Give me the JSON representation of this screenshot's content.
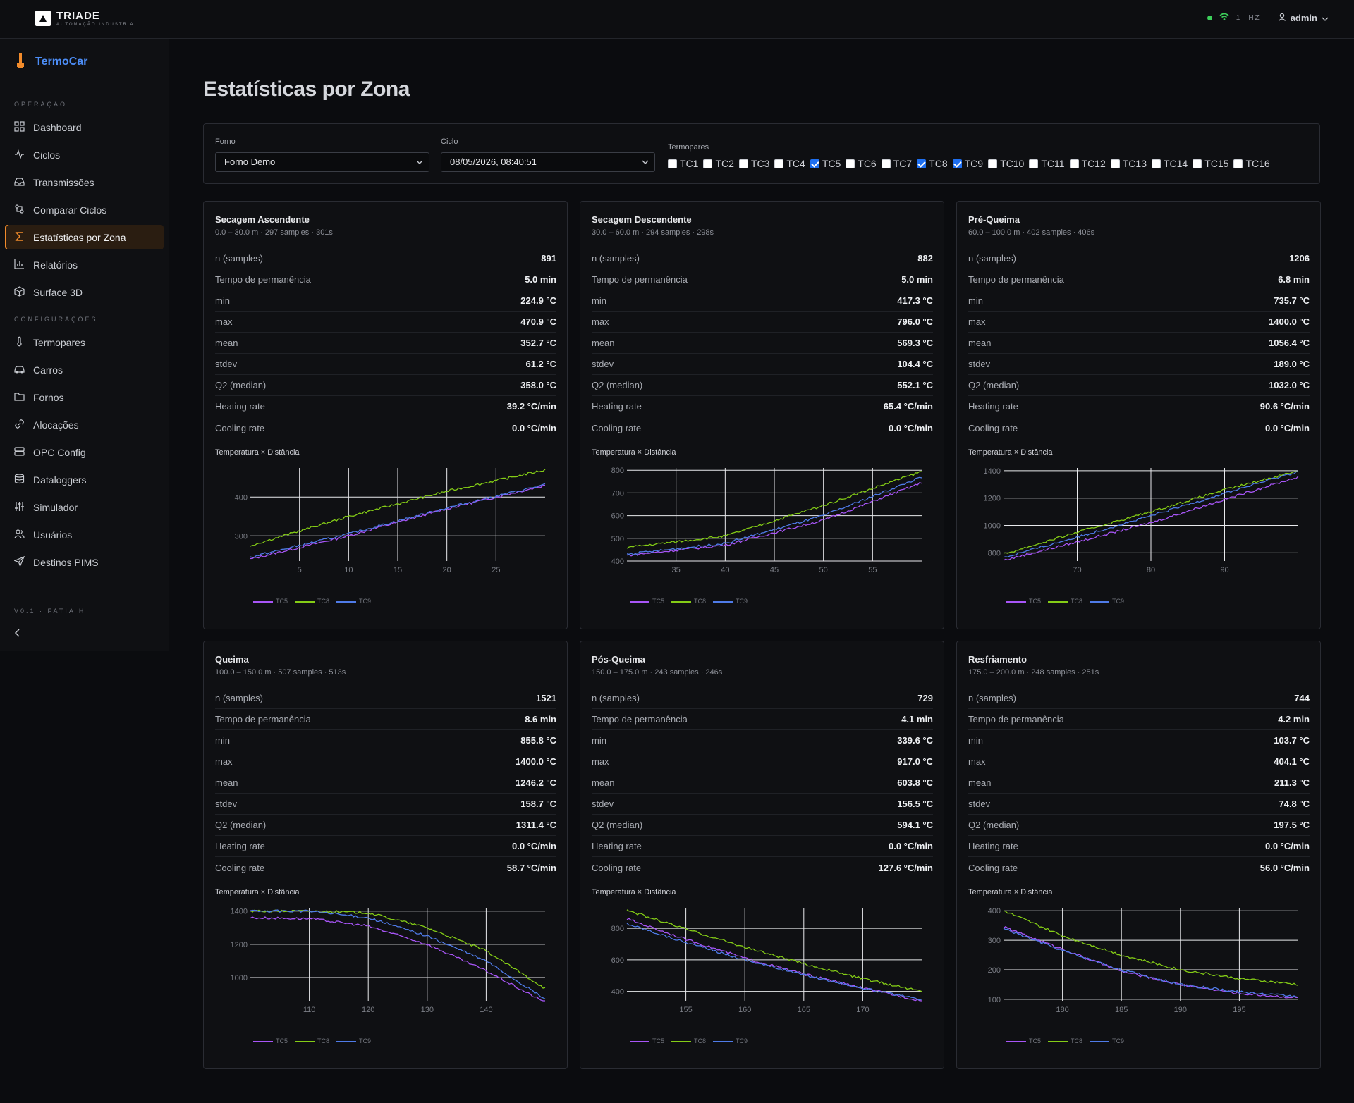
{
  "header": {
    "brand": "TRIADE",
    "brand_sub": "AUTOMAÇÃO INDUSTRIAL",
    "status_count": "1",
    "status_unit": "HZ",
    "user": "admin"
  },
  "sidebar": {
    "app_name": "TermoCar",
    "section_operacao": "OPERAÇÃO",
    "section_config": "CONFIGURAÇÕES",
    "version": "V0.1 · FATIA H",
    "items_op": [
      {
        "label": "Dashboard",
        "icon": "grid-icon"
      },
      {
        "label": "Ciclos",
        "icon": "activity-icon"
      },
      {
        "label": "Transmissões",
        "icon": "inbox-icon"
      },
      {
        "label": "Comparar Ciclos",
        "icon": "compare-icon"
      },
      {
        "label": "Estatísticas por Zona",
        "icon": "sigma-icon",
        "active": true
      },
      {
        "label": "Relatórios",
        "icon": "bar-chart-icon"
      },
      {
        "label": "Surface 3D",
        "icon": "cube-icon"
      }
    ],
    "items_cfg": [
      {
        "label": "Termopares",
        "icon": "thermometer-icon"
      },
      {
        "label": "Carros",
        "icon": "car-icon"
      },
      {
        "label": "Fornos",
        "icon": "folder-icon"
      },
      {
        "label": "Alocações",
        "icon": "link-icon"
      },
      {
        "label": "OPC Config",
        "icon": "server-icon"
      },
      {
        "label": "Dataloggers",
        "icon": "database-icon"
      },
      {
        "label": "Simulador",
        "icon": "sliders-icon"
      },
      {
        "label": "Usuários",
        "icon": "users-icon"
      },
      {
        "label": "Destinos PIMS",
        "icon": "send-icon"
      }
    ]
  },
  "page": {
    "title": "Estatísticas por Zona"
  },
  "filters": {
    "forno_label": "Forno",
    "forno_value": "Forno Demo",
    "ciclo_label": "Ciclo",
    "ciclo_value": "08/05/2026, 08:40:51",
    "termopares_label": "Termopares",
    "termopares": [
      {
        "name": "TC1",
        "checked": false
      },
      {
        "name": "TC2",
        "checked": false
      },
      {
        "name": "TC3",
        "checked": false
      },
      {
        "name": "TC4",
        "checked": false
      },
      {
        "name": "TC5",
        "checked": true
      },
      {
        "name": "TC6",
        "checked": false
      },
      {
        "name": "TC7",
        "checked": false
      },
      {
        "name": "TC8",
        "checked": true
      },
      {
        "name": "TC9",
        "checked": true
      },
      {
        "name": "TC10",
        "checked": false
      },
      {
        "name": "TC11",
        "checked": false
      },
      {
        "name": "TC12",
        "checked": false
      },
      {
        "name": "TC13",
        "checked": false
      },
      {
        "name": "TC14",
        "checked": false
      },
      {
        "name": "TC15",
        "checked": false
      },
      {
        "name": "TC16",
        "checked": false
      }
    ]
  },
  "stat_labels": [
    "n (samples)",
    "Tempo de permanência",
    "min",
    "max",
    "mean",
    "stdev",
    "Q2 (median)",
    "Heating rate",
    "Cooling rate"
  ],
  "chart_title": "Temperatura × Distância",
  "series_colors": {
    "TC5": "#a855f7",
    "TC8": "#84cc16",
    "TC9": "#4f7be8"
  },
  "zones": [
    {
      "name": "Secagem Ascendente",
      "sub": "0.0 – 30.0 m · 297 samples · 301s",
      "values": [
        "891",
        "5.0 min",
        "224.9 °C",
        "470.9 °C",
        "352.7 °C",
        "61.2 °C",
        "358.0 °C",
        "39.2 °C/min",
        "0.0 °C/min"
      ]
    },
    {
      "name": "Secagem Descendente",
      "sub": "30.0 – 60.0 m · 294 samples · 298s",
      "values": [
        "882",
        "5.0 min",
        "417.3 °C",
        "796.0 °C",
        "569.3 °C",
        "104.4 °C",
        "552.1 °C",
        "65.4 °C/min",
        "0.0 °C/min"
      ]
    },
    {
      "name": "Pré-Queima",
      "sub": "60.0 – 100.0 m · 402 samples · 406s",
      "values": [
        "1206",
        "6.8 min",
        "735.7 °C",
        "1400.0 °C",
        "1056.4 °C",
        "189.0 °C",
        "1032.0 °C",
        "90.6 °C/min",
        "0.0 °C/min"
      ]
    },
    {
      "name": "Queima",
      "sub": "100.0 – 150.0 m · 507 samples · 513s",
      "values": [
        "1521",
        "8.6 min",
        "855.8 °C",
        "1400.0 °C",
        "1246.2 °C",
        "158.7 °C",
        "1311.4 °C",
        "0.0 °C/min",
        "58.7 °C/min"
      ]
    },
    {
      "name": "Pós-Queima",
      "sub": "150.0 – 175.0 m · 243 samples · 246s",
      "values": [
        "729",
        "4.1 min",
        "339.6 °C",
        "917.0 °C",
        "603.8 °C",
        "156.5 °C",
        "594.1 °C",
        "0.0 °C/min",
        "127.6 °C/min"
      ]
    },
    {
      "name": "Resfriamento",
      "sub": "175.0 – 200.0 m · 248 samples · 251s",
      "values": [
        "744",
        "4.2 min",
        "103.7 °C",
        "404.1 °C",
        "211.3 °C",
        "74.8 °C",
        "197.5 °C",
        "0.0 °C/min",
        "56.0 °C/min"
      ]
    }
  ],
  "chart_data": [
    {
      "type": "line",
      "title": "Temperatura × Distância",
      "xlim": [
        0,
        30
      ],
      "ylim": [
        235,
        475
      ],
      "xticks": [
        5,
        10,
        15,
        20,
        25
      ],
      "yticks": [
        300,
        400
      ],
      "series": [
        {
          "name": "TC5",
          "x": [
            0,
            10,
            20,
            30
          ],
          "y": [
            240,
            300,
            370,
            430
          ]
        },
        {
          "name": "TC8",
          "x": [
            0,
            10,
            20,
            30
          ],
          "y": [
            275,
            350,
            415,
            470
          ]
        },
        {
          "name": "TC9",
          "x": [
            0,
            10,
            20,
            30
          ],
          "y": [
            245,
            305,
            372,
            432
          ]
        }
      ]
    },
    {
      "name_ref": "Secagem Descendente",
      "type": "line",
      "title": "Temperatura × Distância",
      "xlim": [
        30,
        60
      ],
      "ylim": [
        400,
        810
      ],
      "xticks": [
        35,
        40,
        45,
        50,
        55
      ],
      "yticks": [
        400,
        500,
        600,
        700,
        800
      ],
      "series": [
        {
          "name": "TC5",
          "x": [
            30,
            40,
            50,
            60
          ],
          "y": [
            425,
            470,
            580,
            745
          ]
        },
        {
          "name": "TC8",
          "x": [
            30,
            40,
            50,
            60
          ],
          "y": [
            460,
            510,
            645,
            795
          ]
        },
        {
          "name": "TC9",
          "x": [
            30,
            40,
            50,
            60
          ],
          "y": [
            430,
            478,
            600,
            770
          ]
        }
      ]
    },
    {
      "type": "line",
      "title": "Temperatura × Distância",
      "xlim": [
        60,
        100
      ],
      "ylim": [
        740,
        1420
      ],
      "xticks": [
        70,
        80,
        90
      ],
      "yticks": [
        800,
        1000,
        1200,
        1400
      ],
      "series": [
        {
          "name": "TC5",
          "x": [
            60,
            70,
            80,
            90,
            100
          ],
          "y": [
            745,
            880,
            1020,
            1190,
            1355
          ]
        },
        {
          "name": "TC8",
          "x": [
            60,
            70,
            80,
            90,
            100
          ],
          "y": [
            790,
            950,
            1100,
            1260,
            1400
          ]
        },
        {
          "name": "TC9",
          "x": [
            60,
            70,
            80,
            90,
            100
          ],
          "y": [
            765,
            915,
            1070,
            1235,
            1395
          ]
        }
      ]
    },
    {
      "type": "line",
      "title": "Temperatura × Distância",
      "xlim": [
        100,
        150
      ],
      "ylim": [
        860,
        1420
      ],
      "xticks": [
        110,
        120,
        130,
        140
      ],
      "yticks": [
        1000,
        1200,
        1400
      ],
      "series": [
        {
          "name": "TC5",
          "x": [
            100,
            110,
            120,
            130,
            140,
            150
          ],
          "y": [
            1360,
            1355,
            1310,
            1200,
            1040,
            850
          ]
        },
        {
          "name": "TC8",
          "x": [
            100,
            110,
            120,
            130,
            140,
            150
          ],
          "y": [
            1400,
            1400,
            1390,
            1300,
            1160,
            935
          ]
        },
        {
          "name": "TC9",
          "x": [
            100,
            110,
            120,
            130,
            140,
            150
          ],
          "y": [
            1400,
            1400,
            1360,
            1250,
            1100,
            870
          ]
        }
      ]
    },
    {
      "type": "line",
      "title": "Temperatura × Distância",
      "xlim": [
        150,
        175
      ],
      "ylim": [
        340,
        930
      ],
      "xticks": [
        155,
        160,
        165,
        170
      ],
      "yticks": [
        400,
        600,
        800
      ],
      "series": [
        {
          "name": "TC5",
          "x": [
            150,
            155,
            160,
            165,
            170,
            175
          ],
          "y": [
            860,
            730,
            610,
            510,
            420,
            340
          ]
        },
        {
          "name": "TC8",
          "x": [
            150,
            155,
            160,
            165,
            170,
            175
          ],
          "y": [
            915,
            795,
            680,
            575,
            480,
            400
          ]
        },
        {
          "name": "TC9",
          "x": [
            150,
            155,
            160,
            165,
            170,
            175
          ],
          "y": [
            830,
            710,
            600,
            505,
            420,
            345
          ]
        }
      ]
    },
    {
      "type": "line",
      "title": "Temperatura × Distância",
      "xlim": [
        175,
        200
      ],
      "ylim": [
        95,
        410
      ],
      "xticks": [
        180,
        185,
        190,
        195
      ],
      "yticks": [
        100,
        200,
        300,
        400
      ],
      "series": [
        {
          "name": "TC5",
          "x": [
            175,
            180,
            185,
            190,
            195,
            200
          ],
          "y": [
            345,
            270,
            195,
            150,
            120,
            105
          ]
        },
        {
          "name": "TC8",
          "x": [
            175,
            180,
            185,
            190,
            195,
            200
          ],
          "y": [
            400,
            315,
            250,
            200,
            170,
            150
          ]
        },
        {
          "name": "TC9",
          "x": [
            175,
            180,
            185,
            190,
            195,
            200
          ],
          "y": [
            340,
            265,
            200,
            150,
            125,
            110
          ]
        }
      ]
    }
  ]
}
